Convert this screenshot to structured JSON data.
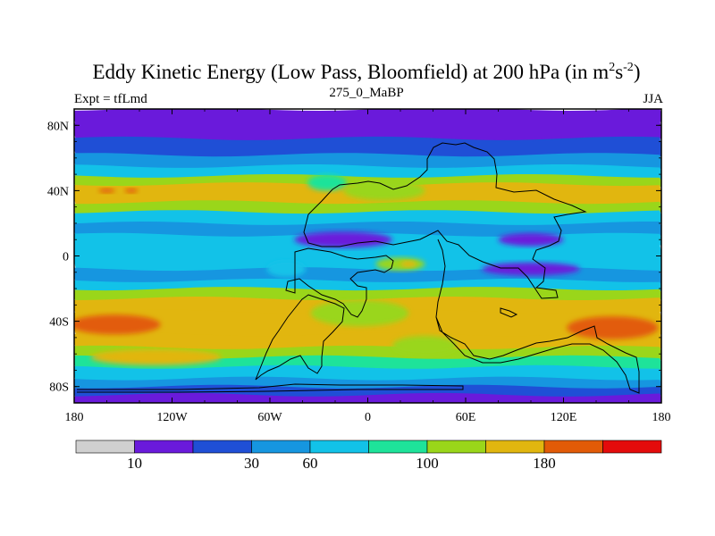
{
  "chart_data": {
    "type": "heatmap",
    "title": "Eddy Kinetic Energy (Low Pass, Bloomfield) at 200 hPa (in m",
    "title_sup1": "2",
    "title_mid": "s",
    "title_sup2": "-2",
    "title_end": ")",
    "left_subtitle": "Expt = tfLmd",
    "center_subtitle": "275_0_MaBP",
    "right_subtitle": "JJA",
    "xlim": [
      -180,
      180
    ],
    "ylim": [
      -90,
      90
    ],
    "x_ticks": [
      {
        "value": -180,
        "label": "180"
      },
      {
        "value": -120,
        "label": "120W"
      },
      {
        "value": -60,
        "label": "60W"
      },
      {
        "value": 0,
        "label": "0"
      },
      {
        "value": 60,
        "label": "60E"
      },
      {
        "value": 120,
        "label": "120E"
      },
      {
        "value": 180,
        "label": "180"
      }
    ],
    "y_ticks": [
      {
        "value": 80,
        "label": "80N"
      },
      {
        "value": 40,
        "label": "40N"
      },
      {
        "value": 0,
        "label": "0"
      },
      {
        "value": -40,
        "label": "40S"
      },
      {
        "value": -80,
        "label": "80S"
      }
    ],
    "colorbar": {
      "colors": [
        "#d0d0d0",
        "#6a1adb",
        "#1f4fd6",
        "#1696e0",
        "#12c2e8",
        "#1ee39a",
        "#9ad61a",
        "#e1b60f",
        "#e25b07",
        "#e40b0b"
      ],
      "labels": [
        {
          "after_box": 1,
          "label": "10"
        },
        {
          "after_box": 3,
          "label": "30"
        },
        {
          "after_box": 4,
          "label": "60"
        },
        {
          "after_box": 6,
          "label": "100"
        },
        {
          "after_box": 8,
          "label": "180"
        }
      ]
    },
    "field_bands": [
      {
        "lat_top": 90,
        "lat_bottom": 82,
        "color_index": 1
      },
      {
        "lat_top": 82,
        "lat_bottom": 72,
        "color_index": 1
      },
      {
        "lat_top": 72,
        "lat_bottom": 62,
        "color_index": 2
      },
      {
        "lat_top": 62,
        "lat_bottom": 55,
        "color_index": 3
      },
      {
        "lat_top": 55,
        "lat_bottom": 49,
        "color_index": 4
      },
      {
        "lat_top": 49,
        "lat_bottom": 44,
        "color_index": 6
      },
      {
        "lat_top": 44,
        "lat_bottom": 33,
        "color_index": 7
      },
      {
        "lat_top": 33,
        "lat_bottom": 27,
        "color_index": 6
      },
      {
        "lat_top": 27,
        "lat_bottom": 20,
        "color_index": 4
      },
      {
        "lat_top": 20,
        "lat_bottom": 13,
        "color_index": 3
      },
      {
        "lat_top": 13,
        "lat_bottom": 8,
        "color_index": 4
      },
      {
        "lat_top": 8,
        "lat_bottom": -8,
        "color_index": 4
      },
      {
        "lat_top": -8,
        "lat_bottom": -15,
        "color_index": 3
      },
      {
        "lat_top": -15,
        "lat_bottom": -20,
        "color_index": 4
      },
      {
        "lat_top": -20,
        "lat_bottom": -26,
        "color_index": 6
      },
      {
        "lat_top": -26,
        "lat_bottom": -34,
        "color_index": 7
      },
      {
        "lat_top": -34,
        "lat_bottom": -48,
        "color_index": 7
      },
      {
        "lat_top": -48,
        "lat_bottom": -56,
        "color_index": 7
      },
      {
        "lat_top": -56,
        "lat_bottom": -62,
        "color_index": 6
      },
      {
        "lat_top": -62,
        "lat_bottom": -68,
        "color_index": 5
      },
      {
        "lat_top": -68,
        "lat_bottom": -75,
        "color_index": 4
      },
      {
        "lat_top": -75,
        "lat_bottom": -80,
        "color_index": 3
      },
      {
        "lat_top": -80,
        "lat_bottom": -85,
        "color_index": 2
      },
      {
        "lat_top": -85,
        "lat_bottom": -90,
        "color_index": 1
      }
    ],
    "field_blobs": [
      {
        "lon": -155,
        "lat": -42,
        "rlon": 28,
        "rlat": 6,
        "color_index": 8
      },
      {
        "lon": 150,
        "lat": -44,
        "rlon": 28,
        "rlat": 7,
        "color_index": 8
      },
      {
        "lon": -160,
        "lat": 40,
        "rlon": 5,
        "rlat": 1.5,
        "color_index": 8
      },
      {
        "lon": -145,
        "lat": 40,
        "rlon": 4,
        "rlat": 1.5,
        "color_index": 8
      },
      {
        "lon": 10,
        "lat": 40,
        "rlon": 25,
        "rlat": 6,
        "color_index": 6
      },
      {
        "lon": -25,
        "lat": 45,
        "rlon": 12,
        "rlat": 5,
        "color_index": 5
      },
      {
        "lon": -15,
        "lat": 10,
        "rlon": 30,
        "rlat": 5,
        "color_index": 1
      },
      {
        "lon": 100,
        "lat": 10,
        "rlon": 20,
        "rlat": 4,
        "color_index": 1
      },
      {
        "lon": 100,
        "lat": -8,
        "rlon": 30,
        "rlat": 4,
        "color_index": 1
      },
      {
        "lon": 20,
        "lat": -5,
        "rlon": 15,
        "rlat": 4,
        "color_index": 6
      },
      {
        "lon": 25,
        "lat": -5,
        "rlon": 5,
        "rlat": 2,
        "color_index": 7
      },
      {
        "lon": -5,
        "lat": -35,
        "rlon": 30,
        "rlat": 8,
        "color_index": 6
      },
      {
        "lon": -50,
        "lat": -8,
        "rlon": 12,
        "rlat": 5,
        "color_index": 4
      },
      {
        "lon": 35,
        "lat": -55,
        "rlon": 20,
        "rlat": 6,
        "color_index": 6
      },
      {
        "lon": -130,
        "lat": -62,
        "rlon": 40,
        "rlat": 5,
        "color_index": 7
      }
    ]
  }
}
